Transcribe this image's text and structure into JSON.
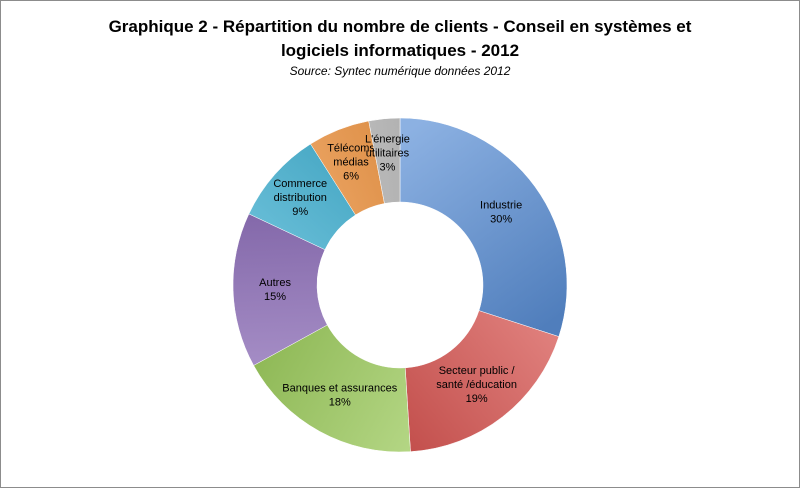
{
  "chart_data": {
    "type": "pie",
    "title_lines": [
      "Graphique 2 - Répartition du nombre de clients - Conseil en systèmes et",
      "logiciels informatiques - 2012"
    ],
    "subtitle": "Source: Syntec numérique données 2012",
    "slices": [
      {
        "label_lines": [
          "Industrie",
          "30%"
        ],
        "value": 30,
        "color": "#5b8fd6"
      },
      {
        "label_lines": [
          "Secteur public /",
          "santé /éducation",
          "19%"
        ],
        "value": 19,
        "color": "#d9534f"
      },
      {
        "label_lines": [
          "Banques et assurances",
          "18%"
        ],
        "value": 18,
        "color": "#9ccc5a"
      },
      {
        "label_lines": [
          "Autres",
          "15%"
        ],
        "value": 15,
        "color": "#8b6bb8"
      },
      {
        "label_lines": [
          "Commerce",
          "distribution",
          "9%"
        ],
        "value": 9,
        "color": "#3fb2d4"
      },
      {
        "label_lines": [
          "Télécoms",
          "médias",
          "6%"
        ],
        "value": 6,
        "color": "#f0913a"
      },
      {
        "label_lines": [
          "L'énergie",
          "utilitaires",
          "3%"
        ],
        "value": 3,
        "color": "#b5b5b5"
      }
    ],
    "donut": true
  }
}
